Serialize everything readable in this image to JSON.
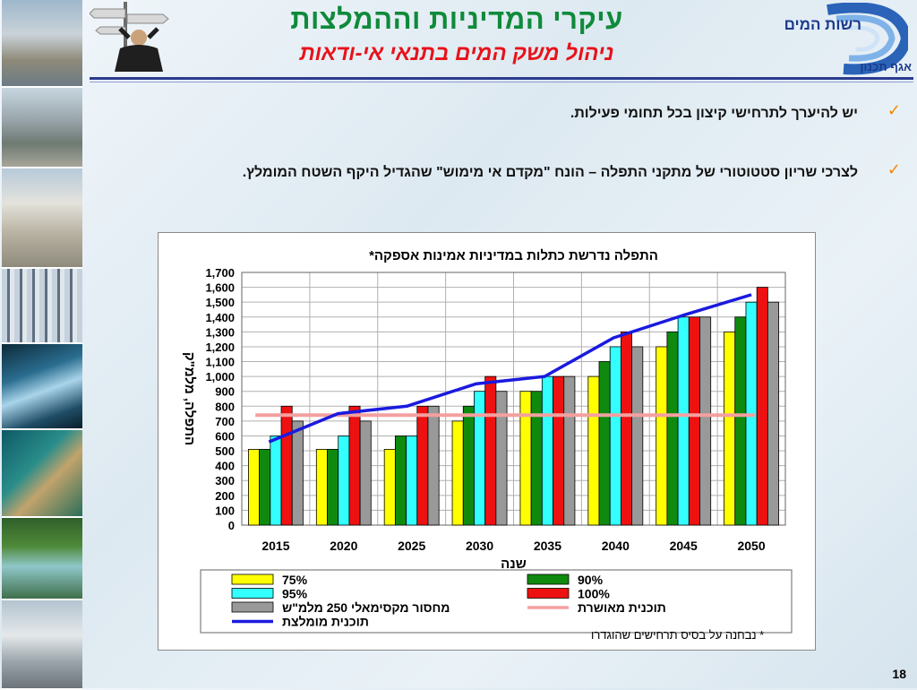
{
  "slide": {
    "title": "עיקרי המדיניות וההמלצות",
    "subtitle": "ניהול משק המים בתנאי אי-ודאות",
    "logo_name": "רשות המים",
    "logo_dept": "אגף תכנון",
    "page_number": "18",
    "bullets": [
      {
        "text": "יש להיערך לתרחישי קיצון בכל תחומי פעילות."
      },
      {
        "text": "לצרכי שריון סטטוטורי של מתקני התפלה – הונח \"מקדם אי מימוש\" שהגדיל היקף השטח המומלץ."
      }
    ],
    "footnote": "* נבחנה על בסיס תרחישים שהוגדרו"
  },
  "colors": {
    "title_green": "#0f8a3a",
    "subtitle_red": "#e8121a",
    "check_orange": "#f08a00",
    "logo_blue": "#1b3a8c"
  },
  "chart_data": {
    "type": "bar",
    "title": "התפלה נדרשת כתלות במדיניות אמינות אספקה*",
    "xlabel": "שנה",
    "ylabel": "התפלה, מלמ\"ק",
    "ylim": [
      0,
      1700
    ],
    "yticks": [
      "0",
      "100",
      "200",
      "300",
      "400",
      "500",
      "600",
      "700",
      "800",
      "900",
      "1,000",
      "1,100",
      "1,200",
      "1,300",
      "1,400",
      "1,500",
      "1,600",
      "1,700"
    ],
    "categories": [
      "2015",
      "2020",
      "2025",
      "2030",
      "2035",
      "2040",
      "2045",
      "2050"
    ],
    "grid": true,
    "legend_position": "bottom",
    "series": [
      {
        "name": "75%",
        "color": "#ffff00",
        "values": [
          510,
          510,
          510,
          700,
          900,
          1000,
          1200,
          1300
        ]
      },
      {
        "name": "90%",
        "color": "#0f8a0f",
        "values": [
          510,
          510,
          600,
          800,
          900,
          1100,
          1300,
          1400
        ]
      },
      {
        "name": "95%",
        "color": "#33ffff",
        "values": [
          600,
          600,
          600,
          900,
          1000,
          1200,
          1400,
          1500
        ]
      },
      {
        "name": "100%",
        "color": "#ee1111",
        "values": [
          800,
          800,
          800,
          1000,
          1000,
          1300,
          1400,
          1600
        ]
      },
      {
        "name": "מחסור מקסימאלי 250 מלמ\"ש",
        "color": "#999999",
        "values": [
          700,
          700,
          800,
          900,
          1000,
          1200,
          1400,
          1500
        ]
      }
    ],
    "lines": [
      {
        "name": "תוכנית מאושרת",
        "color": "#f4a0a0",
        "values": [
          740,
          740,
          740,
          740,
          740,
          740,
          740,
          740
        ]
      },
      {
        "name": "תוכנית מומלצת",
        "color": "#1a1adf",
        "values": [
          560,
          750,
          800,
          950,
          1000,
          1260,
          1410,
          1550
        ]
      }
    ],
    "legend": {
      "left": [
        "75%",
        "95%",
        "מחסור מקסימאלי 250 מלמ\"ש",
        "תוכנית מומלצת"
      ],
      "right": [
        "90%",
        "100%",
        "תוכנית מאושרת"
      ]
    }
  }
}
